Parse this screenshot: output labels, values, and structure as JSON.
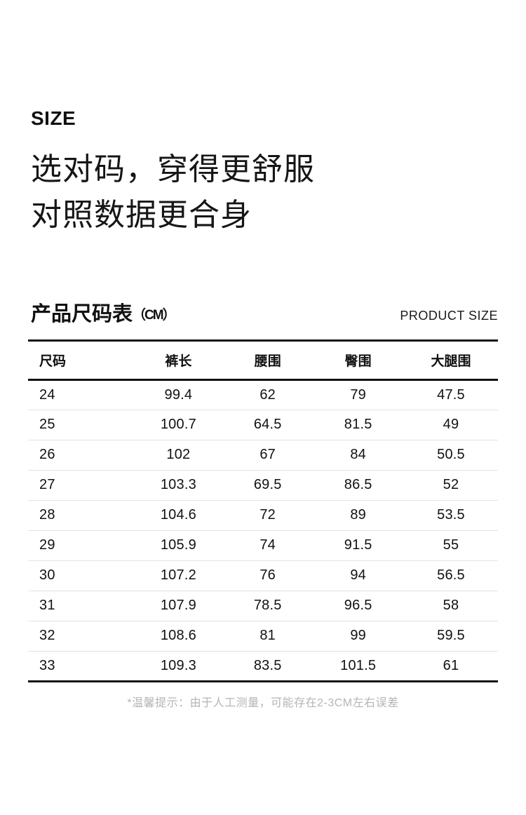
{
  "header": {
    "eyebrow": "SIZE",
    "headline": [
      "选对码，穿得更舒服",
      "对照数据更合身"
    ]
  },
  "section_title": {
    "cn": "产品尺码表",
    "unit": "（CM）",
    "en": "PRODUCT SIZE"
  },
  "table": {
    "headers": [
      "尺码",
      "裤长",
      "腰围",
      "臀围",
      "大腿围"
    ],
    "rows": [
      [
        "24",
        "99.4",
        "62",
        "79",
        "47.5"
      ],
      [
        "25",
        "100.7",
        "64.5",
        "81.5",
        "49"
      ],
      [
        "26",
        "102",
        "67",
        "84",
        "50.5"
      ],
      [
        "27",
        "103.3",
        "69.5",
        "86.5",
        "52"
      ],
      [
        "28",
        "104.6",
        "72",
        "89",
        "53.5"
      ],
      [
        "29",
        "105.9",
        "74",
        "91.5",
        "55"
      ],
      [
        "30",
        "107.2",
        "76",
        "94",
        "56.5"
      ],
      [
        "31",
        "107.9",
        "78.5",
        "96.5",
        "58"
      ],
      [
        "32",
        "108.6",
        "81",
        "99",
        "59.5"
      ],
      [
        "33",
        "109.3",
        "83.5",
        "101.5",
        "61"
      ]
    ]
  },
  "footnote": "*温馨提示：由于人工测量，可能存在2-3CM左右误差",
  "colors": {
    "text": "#111111",
    "heavy_rule": "#111111",
    "row_divider": "#e3e3e3",
    "footnote": "#b5b5b5",
    "background": "#ffffff"
  }
}
